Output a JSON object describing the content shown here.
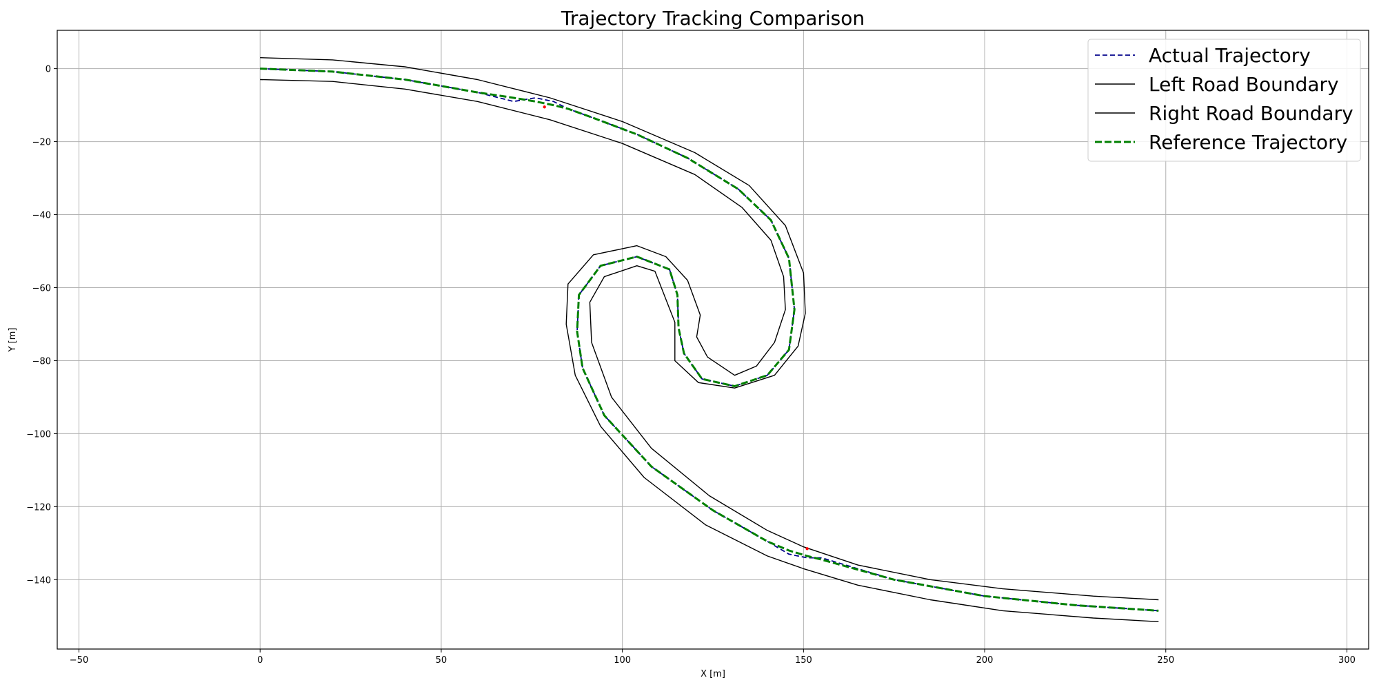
{
  "chart_data": {
    "type": "line",
    "title": "Trajectory Tracking Comparison",
    "xlabel": "X [m]",
    "ylabel": "Y [m]",
    "xlim": [
      -56,
      306
    ],
    "ylim": [
      -159,
      10.5
    ],
    "xticks": [
      -50,
      0,
      50,
      100,
      150,
      200,
      250,
      300
    ],
    "yticks": [
      0,
      -20,
      -40,
      -60,
      -80,
      -100,
      -120,
      -140
    ],
    "grid": true,
    "legend_position": "top-right",
    "series": [
      {
        "name": "Actual Trajectory",
        "color": "#00008b",
        "style": "dashed",
        "x": [
          0,
          20,
          40,
          60,
          70,
          76,
          81,
          85,
          92,
          104,
          118,
          132,
          141,
          146,
          147.5,
          146,
          140,
          131,
          122,
          117,
          115.5,
          115.2,
          113,
          104,
          94,
          88,
          87.5,
          89,
          95,
          108,
          125,
          140,
          146,
          151,
          155,
          175,
          200,
          225,
          248
        ],
        "y": [
          0,
          -0.8,
          -3,
          -6.5,
          -9,
          -8,
          -9,
          -11,
          -13.5,
          -18,
          -24.5,
          -33,
          -41.5,
          -52,
          -66,
          -77,
          -84,
          -87,
          -85,
          -78,
          -71,
          -62,
          -55,
          -51.5,
          -54,
          -62,
          -72,
          -82,
          -95,
          -109,
          -121,
          -129.5,
          -133,
          -134,
          -134,
          -140,
          -144.5,
          -147,
          -148.5
        ]
      },
      {
        "name": "Left Road Boundary",
        "color": "#000000",
        "style": "solid",
        "x": [
          0,
          20,
          40,
          60,
          80,
          100,
          120,
          135,
          145,
          150,
          150.5,
          148.5,
          142,
          131,
          121,
          114.5,
          114.5,
          109,
          104,
          95,
          91,
          91.5,
          97,
          108,
          124,
          140,
          150,
          165,
          185,
          205,
          230,
          248
        ],
        "y": [
          3,
          2.4,
          0.5,
          -3,
          -8,
          -14.5,
          -23,
          -32,
          -43,
          -56,
          -67,
          -76,
          -84,
          -87.5,
          -86,
          -80,
          -69.5,
          -55.5,
          -54,
          -57,
          -64,
          -75,
          -90,
          -104,
          -117,
          -126.5,
          -131,
          -136,
          -140,
          -142.5,
          -144.5,
          -145.5
        ]
      },
      {
        "name": "Right Road Boundary",
        "color": "#000000",
        "style": "solid",
        "x": [
          0,
          20,
          40,
          60,
          80,
          100,
          120,
          133,
          141,
          144.5,
          145,
          142,
          137,
          131,
          123.5,
          120.5,
          121.5,
          118,
          112,
          104,
          92,
          85,
          84.5,
          87,
          94,
          106,
          123,
          140,
          150,
          165,
          185,
          205,
          230,
          248
        ],
        "y": [
          -3,
          -3.5,
          -5.6,
          -9,
          -14,
          -20.5,
          -29,
          -38,
          -47,
          -57,
          -66,
          -75,
          -81.5,
          -84,
          -79,
          -73.5,
          -67.5,
          -58,
          -51.5,
          -48.5,
          -51,
          -59,
          -70,
          -84,
          -98,
          -112,
          -125,
          -133.5,
          -137,
          -141.5,
          -145.5,
          -148.5,
          -150.5,
          -151.5
        ]
      },
      {
        "name": "Reference Trajectory",
        "color": "#008000",
        "style": "dashed",
        "x": [
          0,
          20,
          40,
          60,
          70,
          76,
          81,
          85,
          92,
          104,
          118,
          132,
          141,
          146,
          147.5,
          146,
          140,
          131,
          122,
          117,
          115.5,
          115.2,
          113,
          104,
          94,
          88,
          87.5,
          89,
          95,
          108,
          125,
          140,
          146,
          151,
          155,
          175,
          200,
          225,
          248
        ],
        "y": [
          0,
          -0.8,
          -3,
          -6.5,
          -8,
          -9,
          -10,
          -11,
          -13.5,
          -18,
          -24.5,
          -33,
          -41.5,
          -52,
          -66,
          -77,
          -84,
          -87,
          -85,
          -78,
          -71,
          -62,
          -55,
          -51.5,
          -54,
          -62,
          -72,
          -82,
          -95,
          -109,
          -121,
          -129.5,
          -132,
          -133.5,
          -134.5,
          -140,
          -144.5,
          -147,
          -148.5
        ]
      }
    ],
    "markers": [
      {
        "x": 78.5,
        "y": -10.5,
        "color": "#ff0000"
      },
      {
        "x": 151,
        "y": -131.5,
        "color": "#ff0000"
      }
    ]
  }
}
